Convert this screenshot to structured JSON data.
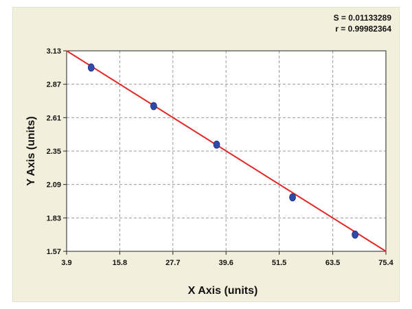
{
  "stats": {
    "s_text": "S = 0.01133289",
    "r_text": "r = 0.99982364"
  },
  "chart_data": {
    "type": "scatter",
    "title": "",
    "xlabel": "X Axis (units)",
    "ylabel": "Y Axis (units)",
    "xlim": [
      3.9,
      75.4
    ],
    "ylim": [
      1.57,
      3.13
    ],
    "xticks": [
      "3.9",
      "15.8",
      "27.7",
      "39.6",
      "51.5",
      "63.5",
      "75.4"
    ],
    "xtick_values": [
      3.9,
      15.8,
      27.7,
      39.6,
      51.5,
      63.5,
      75.4
    ],
    "yticks": [
      "1.57",
      "1.83",
      "2.09",
      "2.35",
      "2.61",
      "2.87",
      "3.13"
    ],
    "ytick_values": [
      1.57,
      1.83,
      2.09,
      2.35,
      2.61,
      2.87,
      3.13
    ],
    "grid": true,
    "series": [
      {
        "points": [
          {
            "x": 9.4,
            "y": 3.0
          },
          {
            "x": 23.4,
            "y": 2.7
          },
          {
            "x": 37.5,
            "y": 2.4
          },
          {
            "x": 54.5,
            "y": 1.99
          },
          {
            "x": 68.5,
            "y": 1.7
          }
        ]
      }
    ],
    "fit_line": {
      "x": [
        3.9,
        75.4
      ],
      "y": [
        3.13,
        1.57
      ]
    },
    "colors": {
      "points": "#2f4aa8",
      "fit": "#e32626",
      "grid": "#9a9a9a",
      "plot_bg": "#ffffff"
    }
  }
}
